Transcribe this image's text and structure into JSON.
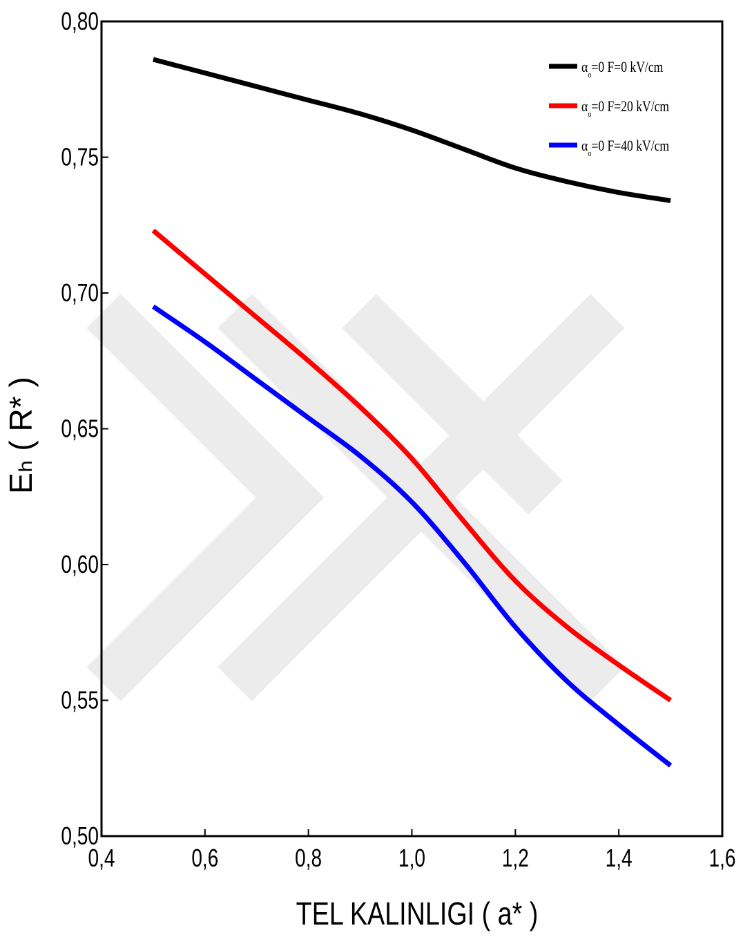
{
  "chart_data": {
    "type": "line",
    "xlabel": "TEL KALINLIGI   ( a* )",
    "ylabel": "Eₕ   ( R* )",
    "xlim": [
      0.4,
      1.6
    ],
    "ylim": [
      0.5,
      0.8
    ],
    "x_ticks": [
      0.4,
      0.6,
      0.8,
      1.0,
      1.2,
      1.4,
      1.6
    ],
    "x_tick_labels": [
      "0,4",
      "0,6",
      "0,8",
      "1,0",
      "1,2",
      "1,4",
      "1,6"
    ],
    "y_ticks": [
      0.5,
      0.55,
      0.6,
      0.65,
      0.7,
      0.75,
      0.8
    ],
    "y_tick_labels": [
      "0,50",
      "0,55",
      "0,60",
      "0,65",
      "0,70",
      "0,75",
      "0,80"
    ],
    "grid": false,
    "legend_position": "top-right",
    "x": [
      0.5,
      0.6,
      0.7,
      0.8,
      0.9,
      1.0,
      1.1,
      1.2,
      1.3,
      1.4,
      1.5
    ],
    "series": [
      {
        "alpha": "α",
        "alpha_sub": "o",
        "rest": "=0  F=0 kV/cm",
        "color": "#000000",
        "values": [
          0.786,
          0.781,
          0.776,
          0.771,
          0.766,
          0.76,
          0.753,
          0.746,
          0.741,
          0.737,
          0.734
        ]
      },
      {
        "alpha": "α",
        "alpha_sub": "o",
        "rest": "=0  F=20 kV/cm",
        "color": "#ff0000",
        "values": [
          0.723,
          0.707,
          0.691,
          0.675,
          0.658,
          0.639,
          0.616,
          0.594,
          0.577,
          0.563,
          0.55
        ]
      },
      {
        "alpha": "α",
        "alpha_sub": "o",
        "rest": "=0  F=40 kV/cm",
        "color": "#0000ff",
        "values": [
          0.695,
          0.682,
          0.668,
          0.654,
          0.64,
          0.623,
          0.601,
          0.577,
          0.557,
          0.541,
          0.526
        ]
      }
    ]
  }
}
